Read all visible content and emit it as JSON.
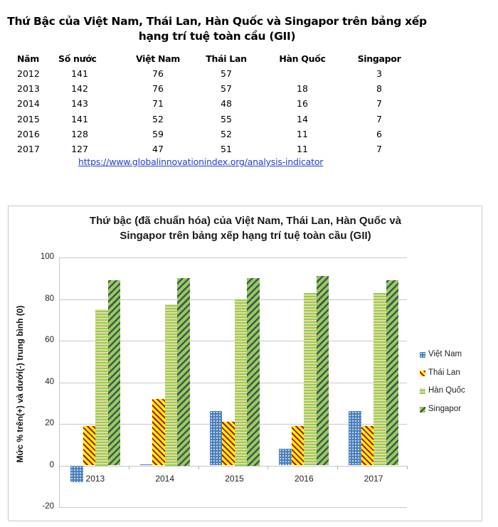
{
  "document": {
    "title_line1": "Thứ Bậc của Việt Nam, Thái Lan, Hàn Quốc và Singapor trên bảng xếp",
    "title_line2": "hạng trí tuệ toàn cầu (GII)"
  },
  "table": {
    "headers": [
      "Năm",
      "Số nước",
      "Việt Nam",
      "Thái Lan",
      "Hàn Quốc",
      "Singapor"
    ],
    "rows": [
      [
        "2012",
        "141",
        "76",
        "57",
        "",
        "3"
      ],
      [
        "2013",
        "142",
        "76",
        "57",
        "18",
        "8"
      ],
      [
        "2014",
        "143",
        "71",
        "48",
        "16",
        "7"
      ],
      [
        "2015",
        "141",
        "52",
        "55",
        "14",
        "7"
      ],
      [
        "2016",
        "128",
        "59",
        "52",
        "11",
        "6"
      ],
      [
        "2017",
        "127",
        "47",
        "51",
        "11",
        "7"
      ]
    ],
    "source_link": "https://www.globalinnovationindex.org/analysis-indicator"
  },
  "chart": {
    "title_line1": "Thứ bậc (đã chuẩn hóa) của Việt Nam, Thái Lan, Hàn Quốc và",
    "title_line2": "Singapor trên bảng xếp hạng trí tuệ toàn cầu (GII)",
    "ylabel": "Mức % trên(+) và dưới(-) trung bình (0)",
    "yticks": [
      "100",
      "80",
      "60",
      "40",
      "20",
      "0",
      "-20"
    ],
    "legend": [
      "Việt Nam",
      "Thái Lan",
      "Hàn Quốc",
      "Singapor"
    ],
    "colors": {
      "Việt Nam": "#4a7ebb",
      "Thái Lan": "#ffff00",
      "Hàn Quốc": "#92d050",
      "Singapor": "#92d050"
    }
  },
  "chart_data": {
    "type": "bar",
    "title": "Thứ bậc (đã chuẩn hóa) của Việt Nam, Thái Lan, Hàn Quốc và Singapor trên bảng xếp hạng trí tuệ toàn cầu (GII)",
    "xlabel": "",
    "ylabel": "Mức % trên(+) và dưới(-) trung bình (0)",
    "categories": [
      "2013",
      "2014",
      "2015",
      "2016",
      "2017"
    ],
    "series": [
      {
        "name": "Việt Nam",
        "values": [
          -8,
          0.5,
          26,
          8,
          26
        ]
      },
      {
        "name": "Thái Lan",
        "values": [
          19,
          32,
          21,
          19,
          19
        ]
      },
      {
        "name": "Hàn Quốc",
        "values": [
          75,
          77.5,
          80,
          83,
          83
        ]
      },
      {
        "name": "Singapor",
        "values": [
          89,
          90,
          90,
          91,
          89
        ]
      }
    ],
    "ylim": [
      -20,
      100
    ],
    "yticks": [
      -20,
      0,
      20,
      40,
      60,
      80,
      100
    ],
    "grid": true,
    "legend_position": "right"
  }
}
